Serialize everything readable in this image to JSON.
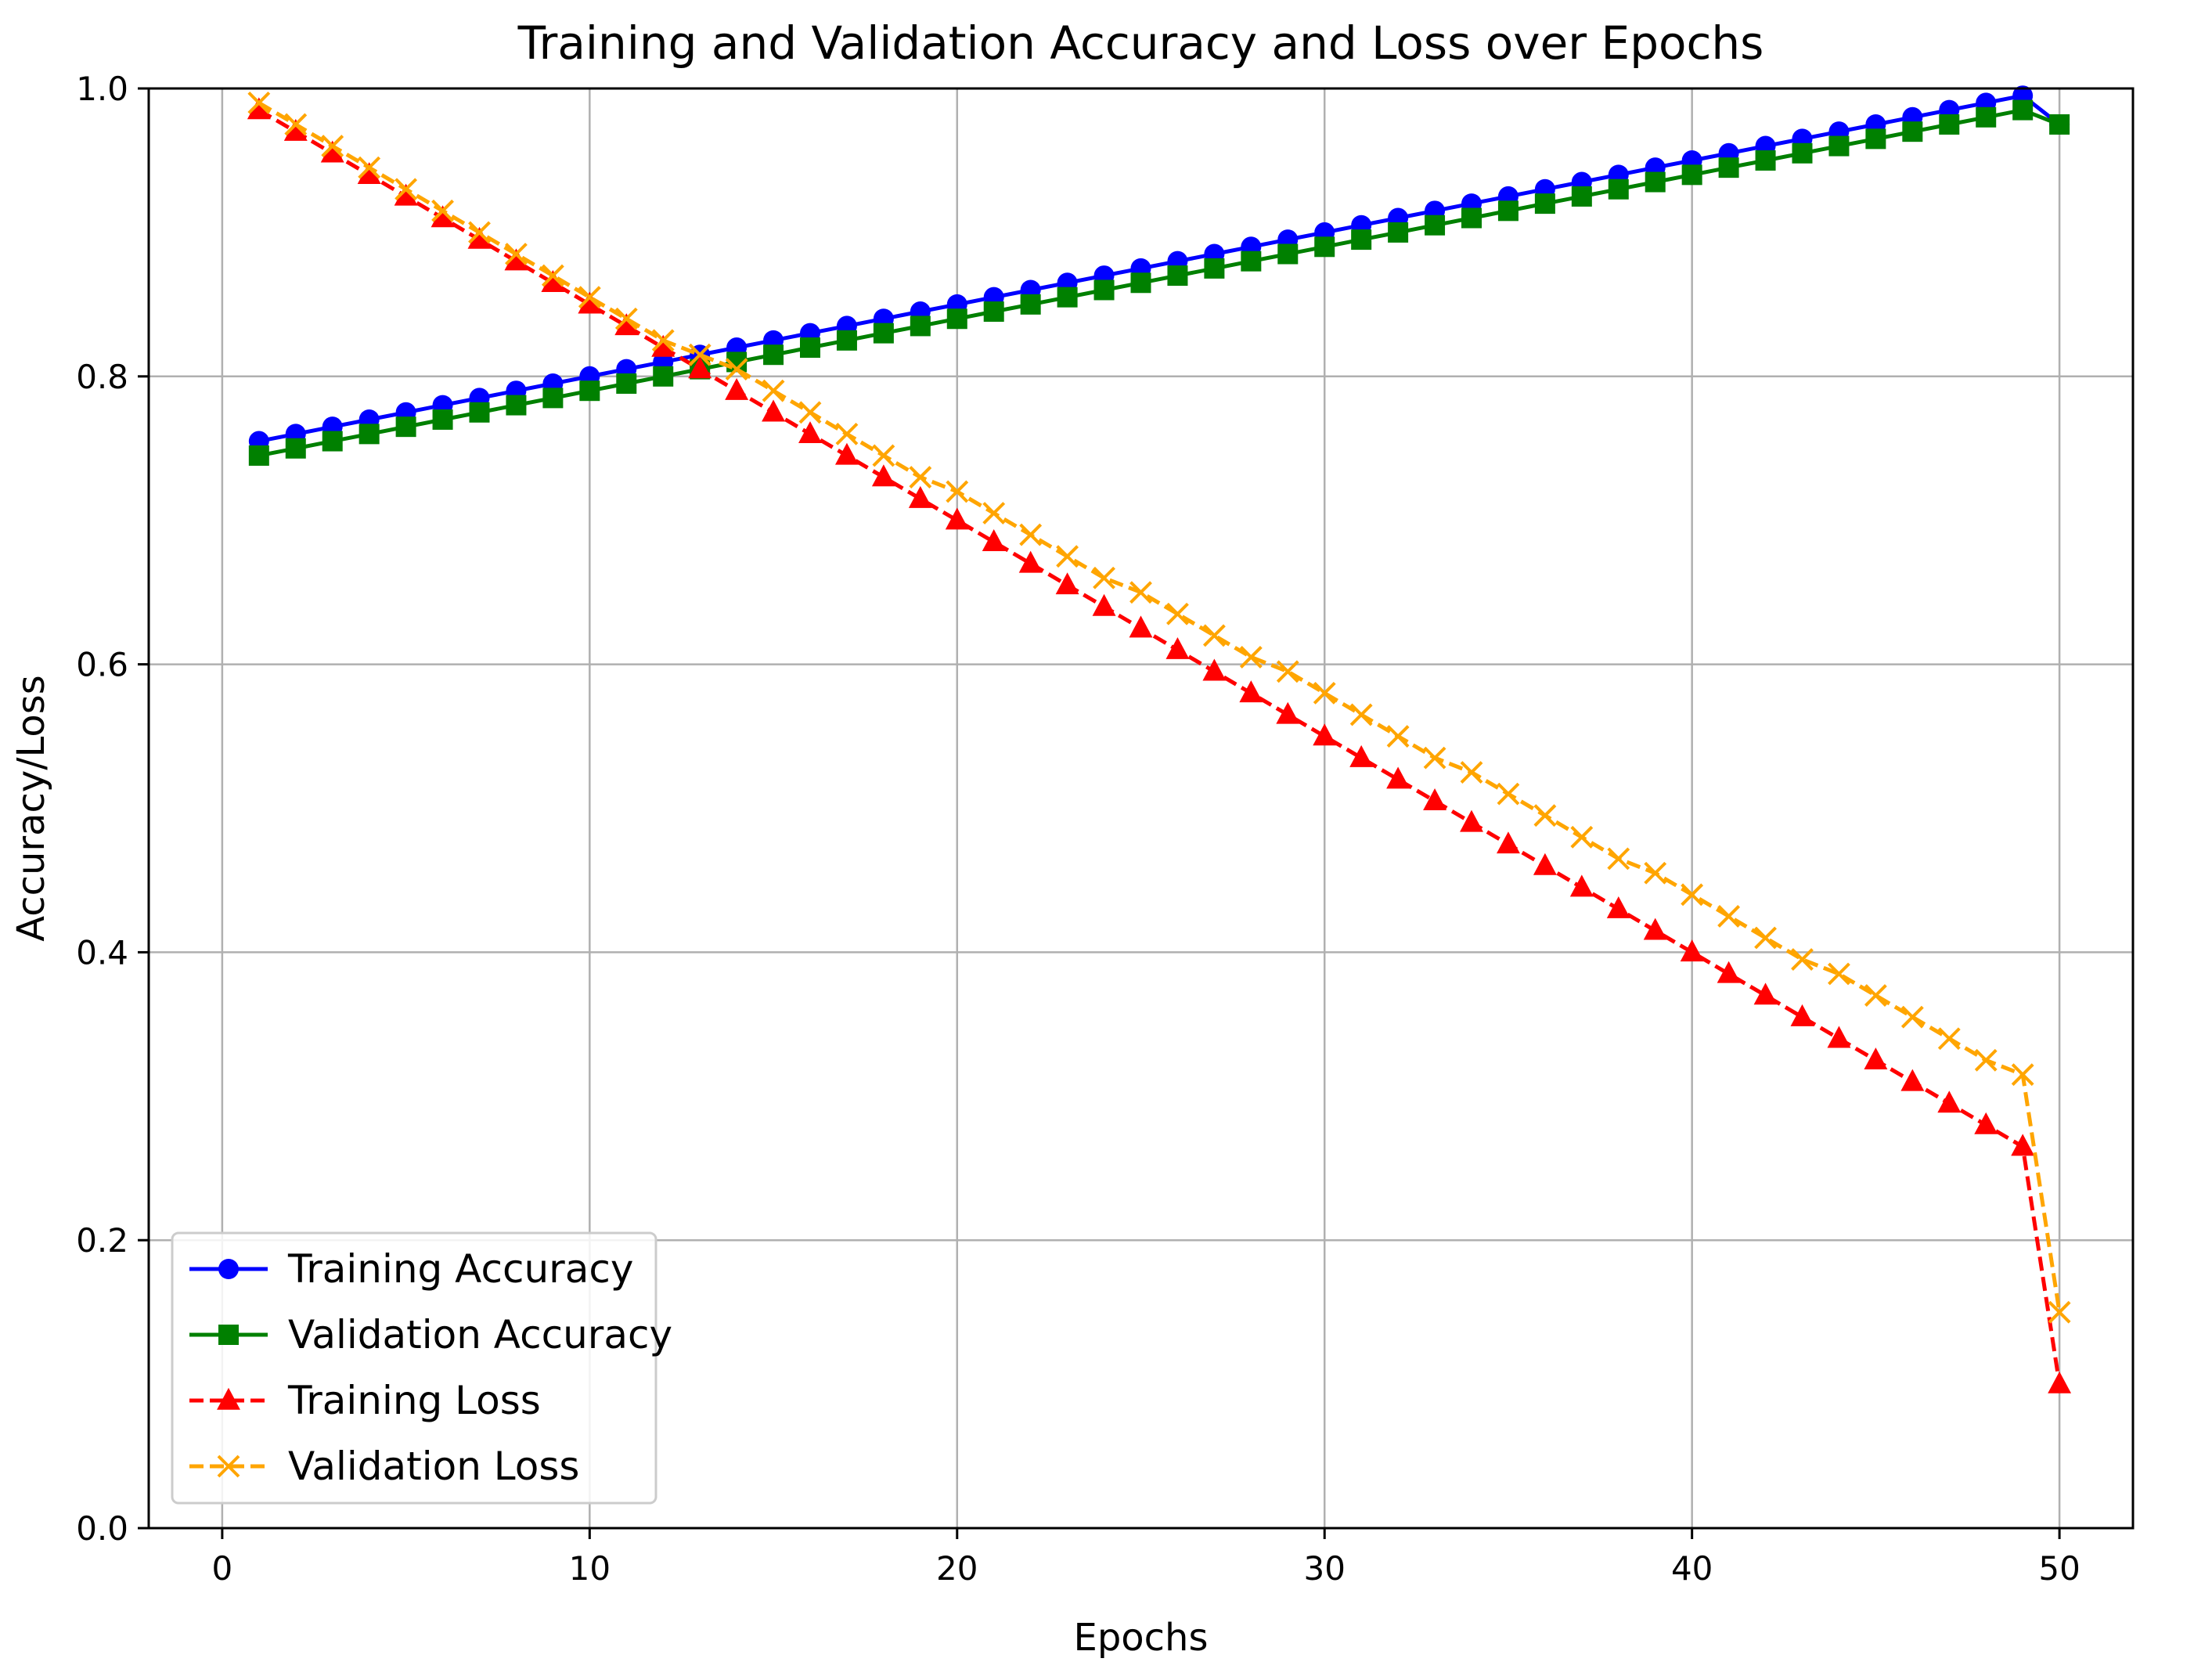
{
  "chart_data": {
    "type": "line",
    "title": "Training and Validation Accuracy and Loss over Epochs",
    "xlabel": "Epochs",
    "ylabel": "Accuracy/Loss",
    "xlim": [
      -2,
      52
    ],
    "ylim": [
      0.0,
      1.0
    ],
    "grid": true,
    "legend_position": "lower-left",
    "xticks": [
      0,
      10,
      20,
      30,
      40,
      50
    ],
    "xtick_labels": [
      "0",
      "10",
      "20",
      "30",
      "40",
      "50"
    ],
    "yticks": [
      0.0,
      0.2,
      0.4,
      0.6,
      0.8,
      1.0
    ],
    "ytick_labels": [
      "0.0",
      "0.2",
      "0.4",
      "0.6",
      "0.8",
      "1.0"
    ],
    "x": [
      1,
      2,
      3,
      4,
      5,
      6,
      7,
      8,
      9,
      10,
      11,
      12,
      13,
      14,
      15,
      16,
      17,
      18,
      19,
      20,
      21,
      22,
      23,
      24,
      25,
      26,
      27,
      28,
      29,
      30,
      31,
      32,
      33,
      34,
      35,
      36,
      37,
      38,
      39,
      40,
      41,
      42,
      43,
      44,
      45,
      46,
      47,
      48,
      49,
      50
    ],
    "series": [
      {
        "name": "Training Accuracy",
        "color": "#0000ff",
        "marker": "circle",
        "linestyle": "solid",
        "values": [
          0.755,
          0.76,
          0.765,
          0.77,
          0.775,
          0.78,
          0.785,
          0.79,
          0.795,
          0.8,
          0.805,
          0.81,
          0.815,
          0.82,
          0.825,
          0.83,
          0.835,
          0.84,
          0.845,
          0.85,
          0.855,
          0.86,
          0.865,
          0.87,
          0.875,
          0.88,
          0.885,
          0.89,
          0.895,
          0.9,
          0.905,
          0.91,
          0.915,
          0.92,
          0.925,
          0.93,
          0.935,
          0.94,
          0.945,
          0.95,
          0.955,
          0.96,
          0.965,
          0.97,
          0.975,
          0.98,
          0.985,
          0.99,
          0.995,
          0.975
        ]
      },
      {
        "name": "Validation Accuracy",
        "color": "#008000",
        "marker": "square",
        "linestyle": "solid",
        "values": [
          0.745,
          0.75,
          0.755,
          0.76,
          0.765,
          0.77,
          0.775,
          0.78,
          0.785,
          0.79,
          0.795,
          0.8,
          0.805,
          0.81,
          0.815,
          0.82,
          0.825,
          0.83,
          0.835,
          0.84,
          0.845,
          0.85,
          0.855,
          0.86,
          0.865,
          0.87,
          0.875,
          0.88,
          0.885,
          0.89,
          0.895,
          0.9,
          0.905,
          0.91,
          0.915,
          0.92,
          0.925,
          0.93,
          0.935,
          0.94,
          0.945,
          0.95,
          0.955,
          0.96,
          0.965,
          0.97,
          0.975,
          0.98,
          0.985,
          0.975
        ]
      },
      {
        "name": "Training Loss",
        "color": "#ff0000",
        "marker": "triangle",
        "linestyle": "dashed",
        "values": [
          0.985,
          0.97,
          0.955,
          0.94,
          0.925,
          0.91,
          0.895,
          0.88,
          0.865,
          0.85,
          0.835,
          0.82,
          0.805,
          0.79,
          0.775,
          0.76,
          0.745,
          0.73,
          0.715,
          0.7,
          0.685,
          0.67,
          0.655,
          0.64,
          0.625,
          0.61,
          0.595,
          0.58,
          0.565,
          0.55,
          0.535,
          0.52,
          0.505,
          0.49,
          0.475,
          0.46,
          0.445,
          0.43,
          0.415,
          0.4,
          0.385,
          0.37,
          0.355,
          0.34,
          0.325,
          0.31,
          0.295,
          0.28,
          0.265,
          0.1
        ]
      },
      {
        "name": "Validation Loss",
        "color": "#ffa500",
        "marker": "x",
        "linestyle": "dashed",
        "values": [
          0.99,
          0.975,
          0.96,
          0.945,
          0.93,
          0.915,
          0.9,
          0.885,
          0.87,
          0.855,
          0.84,
          0.825,
          0.815,
          0.805,
          0.79,
          0.775,
          0.76,
          0.745,
          0.73,
          0.72,
          0.705,
          0.69,
          0.675,
          0.66,
          0.65,
          0.635,
          0.62,
          0.605,
          0.595,
          0.58,
          0.565,
          0.55,
          0.535,
          0.525,
          0.51,
          0.495,
          0.48,
          0.465,
          0.455,
          0.44,
          0.425,
          0.41,
          0.395,
          0.385,
          0.37,
          0.355,
          0.34,
          0.325,
          0.315,
          0.15
        ]
      }
    ]
  }
}
